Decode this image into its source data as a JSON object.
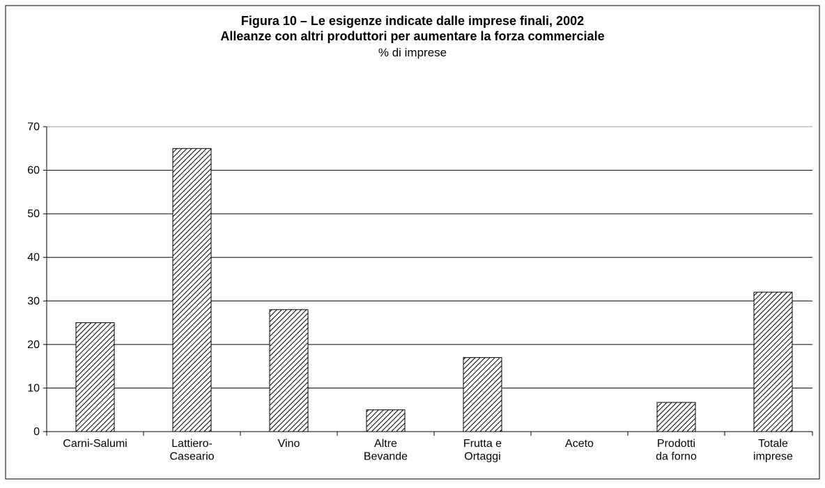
{
  "chart_data": {
    "type": "bar",
    "title": "Figura 10 – Le esigenze indicate dalle imprese finali, 2002",
    "subtitle": "Alleanze con altri produttori per aumentare la forza commerciale",
    "y_label": "% di imprese",
    "categories": [
      "Carni-Salumi",
      "Lattiero-\nCaseario",
      "Vino",
      "Altre\nBevande",
      "Frutta e\nOrtaggi",
      "Aceto",
      "Prodotti\nda forno",
      "Totale\nimprese"
    ],
    "values": [
      25,
      65,
      28,
      5,
      17,
      0,
      6.7,
      32
    ],
    "color": "#000000",
    "ylim": [
      0,
      70
    ],
    "yticks": [
      0,
      10,
      20,
      30,
      40,
      50,
      60,
      70
    ],
    "grid": true
  }
}
